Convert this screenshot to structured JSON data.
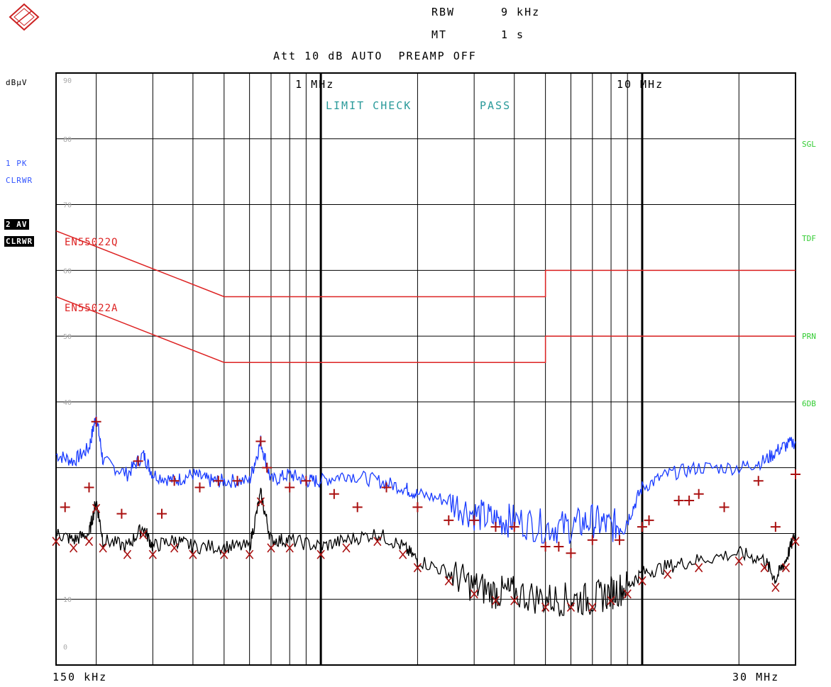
{
  "header": {
    "rbw_label": "RBW",
    "rbw_value": "9 kHz",
    "mt_label": "MT",
    "mt_value": "1 s",
    "att_line": "Att 10 dB AUTO  PREAMP OFF"
  },
  "left_labels": {
    "unit": "dBµV",
    "trace1_line1": "1 PK",
    "trace1_line2": "CLRWR",
    "trace2_line1": "2 AV",
    "trace2_line2": "CLRWR"
  },
  "right_labels": [
    "SGL",
    "TDF",
    "PRN",
    "6DB"
  ],
  "bottom_labels": {
    "start": "150 kHz",
    "stop": "30 MHz"
  },
  "colors": {
    "pk_trace": "#1a3cff",
    "av_trace": "#000000",
    "limit_line": "#dd2222",
    "marker": "#aa1111",
    "limit_check": "#2a9a9a",
    "status": "#33cc33"
  },
  "chart_data": {
    "type": "line",
    "xscale": "log",
    "xlim_mhz": [
      0.15,
      30
    ],
    "ylim": [
      0,
      90
    ],
    "ylabel": "dBµV",
    "y_ticks": [
      0,
      10,
      40,
      50,
      60,
      70,
      80,
      90
    ],
    "x_tick_labels": [
      {
        "x_mhz": 1,
        "label": "1 MHz"
      },
      {
        "x_mhz": 10,
        "label": "10 MHz"
      }
    ],
    "annotation": {
      "label": "LIMIT CHECK",
      "status": "PASS"
    },
    "limit_lines": [
      {
        "name": "EN55022Q",
        "points": [
          [
            0.15,
            66
          ],
          [
            0.5,
            56
          ],
          [
            5,
            56
          ],
          [
            5,
            60
          ],
          [
            30,
            60
          ]
        ]
      },
      {
        "name": "EN55022A",
        "points": [
          [
            0.15,
            56
          ],
          [
            0.5,
            46
          ],
          [
            5,
            46
          ],
          [
            5,
            50
          ],
          [
            30,
            50
          ]
        ]
      }
    ],
    "series": [
      {
        "name": "1 PK",
        "points": [
          [
            0.15,
            32
          ],
          [
            0.17,
            31
          ],
          [
            0.19,
            33
          ],
          [
            0.2,
            38
          ],
          [
            0.21,
            31
          ],
          [
            0.25,
            29
          ],
          [
            0.28,
            32
          ],
          [
            0.3,
            29
          ],
          [
            0.35,
            28
          ],
          [
            0.4,
            29
          ],
          [
            0.45,
            28
          ],
          [
            0.5,
            28
          ],
          [
            0.6,
            28
          ],
          [
            0.65,
            34
          ],
          [
            0.7,
            28
          ],
          [
            0.8,
            29
          ],
          [
            0.9,
            28
          ],
          [
            1.0,
            28
          ],
          [
            1.2,
            29
          ],
          [
            1.5,
            28
          ],
          [
            1.8,
            27
          ],
          [
            2.0,
            26
          ],
          [
            2.5,
            25
          ],
          [
            3.0,
            23
          ],
          [
            3.5,
            22
          ],
          [
            4.0,
            22
          ],
          [
            5.0,
            21
          ],
          [
            6.0,
            21
          ],
          [
            7.0,
            22
          ],
          [
            8.0,
            21
          ],
          [
            9.0,
            22
          ],
          [
            10,
            27
          ],
          [
            12,
            29
          ],
          [
            15,
            30
          ],
          [
            20,
            30
          ],
          [
            24,
            31
          ],
          [
            27,
            33
          ],
          [
            30,
            34
          ]
        ]
      },
      {
        "name": "2 AV",
        "points": [
          [
            0.15,
            20
          ],
          [
            0.17,
            19
          ],
          [
            0.19,
            20
          ],
          [
            0.2,
            25
          ],
          [
            0.21,
            19
          ],
          [
            0.25,
            18
          ],
          [
            0.28,
            21
          ],
          [
            0.3,
            18
          ],
          [
            0.35,
            19
          ],
          [
            0.4,
            18
          ],
          [
            0.5,
            18
          ],
          [
            0.6,
            18
          ],
          [
            0.65,
            26
          ],
          [
            0.7,
            19
          ],
          [
            0.8,
            19
          ],
          [
            1.0,
            18
          ],
          [
            1.2,
            19
          ],
          [
            1.5,
            20
          ],
          [
            1.8,
            18
          ],
          [
            2.0,
            16
          ],
          [
            2.5,
            14
          ],
          [
            3.0,
            12
          ],
          [
            3.5,
            11
          ],
          [
            4.0,
            11
          ],
          [
            5.0,
            10
          ],
          [
            6.0,
            10
          ],
          [
            7.0,
            10
          ],
          [
            8.0,
            11
          ],
          [
            9.0,
            12
          ],
          [
            10,
            14
          ],
          [
            12,
            15
          ],
          [
            15,
            16
          ],
          [
            20,
            17
          ],
          [
            24,
            16
          ],
          [
            26,
            13
          ],
          [
            28,
            16
          ],
          [
            30,
            20
          ]
        ]
      }
    ],
    "markers_plus": [
      [
        0.16,
        24
      ],
      [
        0.19,
        27
      ],
      [
        0.2,
        37
      ],
      [
        0.24,
        23
      ],
      [
        0.27,
        31
      ],
      [
        0.32,
        23
      ],
      [
        0.35,
        28
      ],
      [
        0.42,
        27
      ],
      [
        0.48,
        28
      ],
      [
        0.55,
        28
      ],
      [
        0.65,
        34
      ],
      [
        0.68,
        30
      ],
      [
        0.8,
        27
      ],
      [
        0.9,
        28
      ],
      [
        1.1,
        26
      ],
      [
        1.3,
        24
      ],
      [
        1.6,
        27
      ],
      [
        2.0,
        24
      ],
      [
        2.5,
        22
      ],
      [
        3.0,
        22
      ],
      [
        3.5,
        21
      ],
      [
        4.0,
        21
      ],
      [
        5.0,
        18
      ],
      [
        5.5,
        18
      ],
      [
        6.0,
        17
      ],
      [
        7.0,
        19
      ],
      [
        8.5,
        19
      ],
      [
        10,
        21
      ],
      [
        10.5,
        22
      ],
      [
        13,
        25
      ],
      [
        14,
        25
      ],
      [
        15,
        26
      ],
      [
        18,
        24
      ],
      [
        23,
        28
      ],
      [
        26,
        21
      ],
      [
        30,
        29
      ]
    ]
  }
}
